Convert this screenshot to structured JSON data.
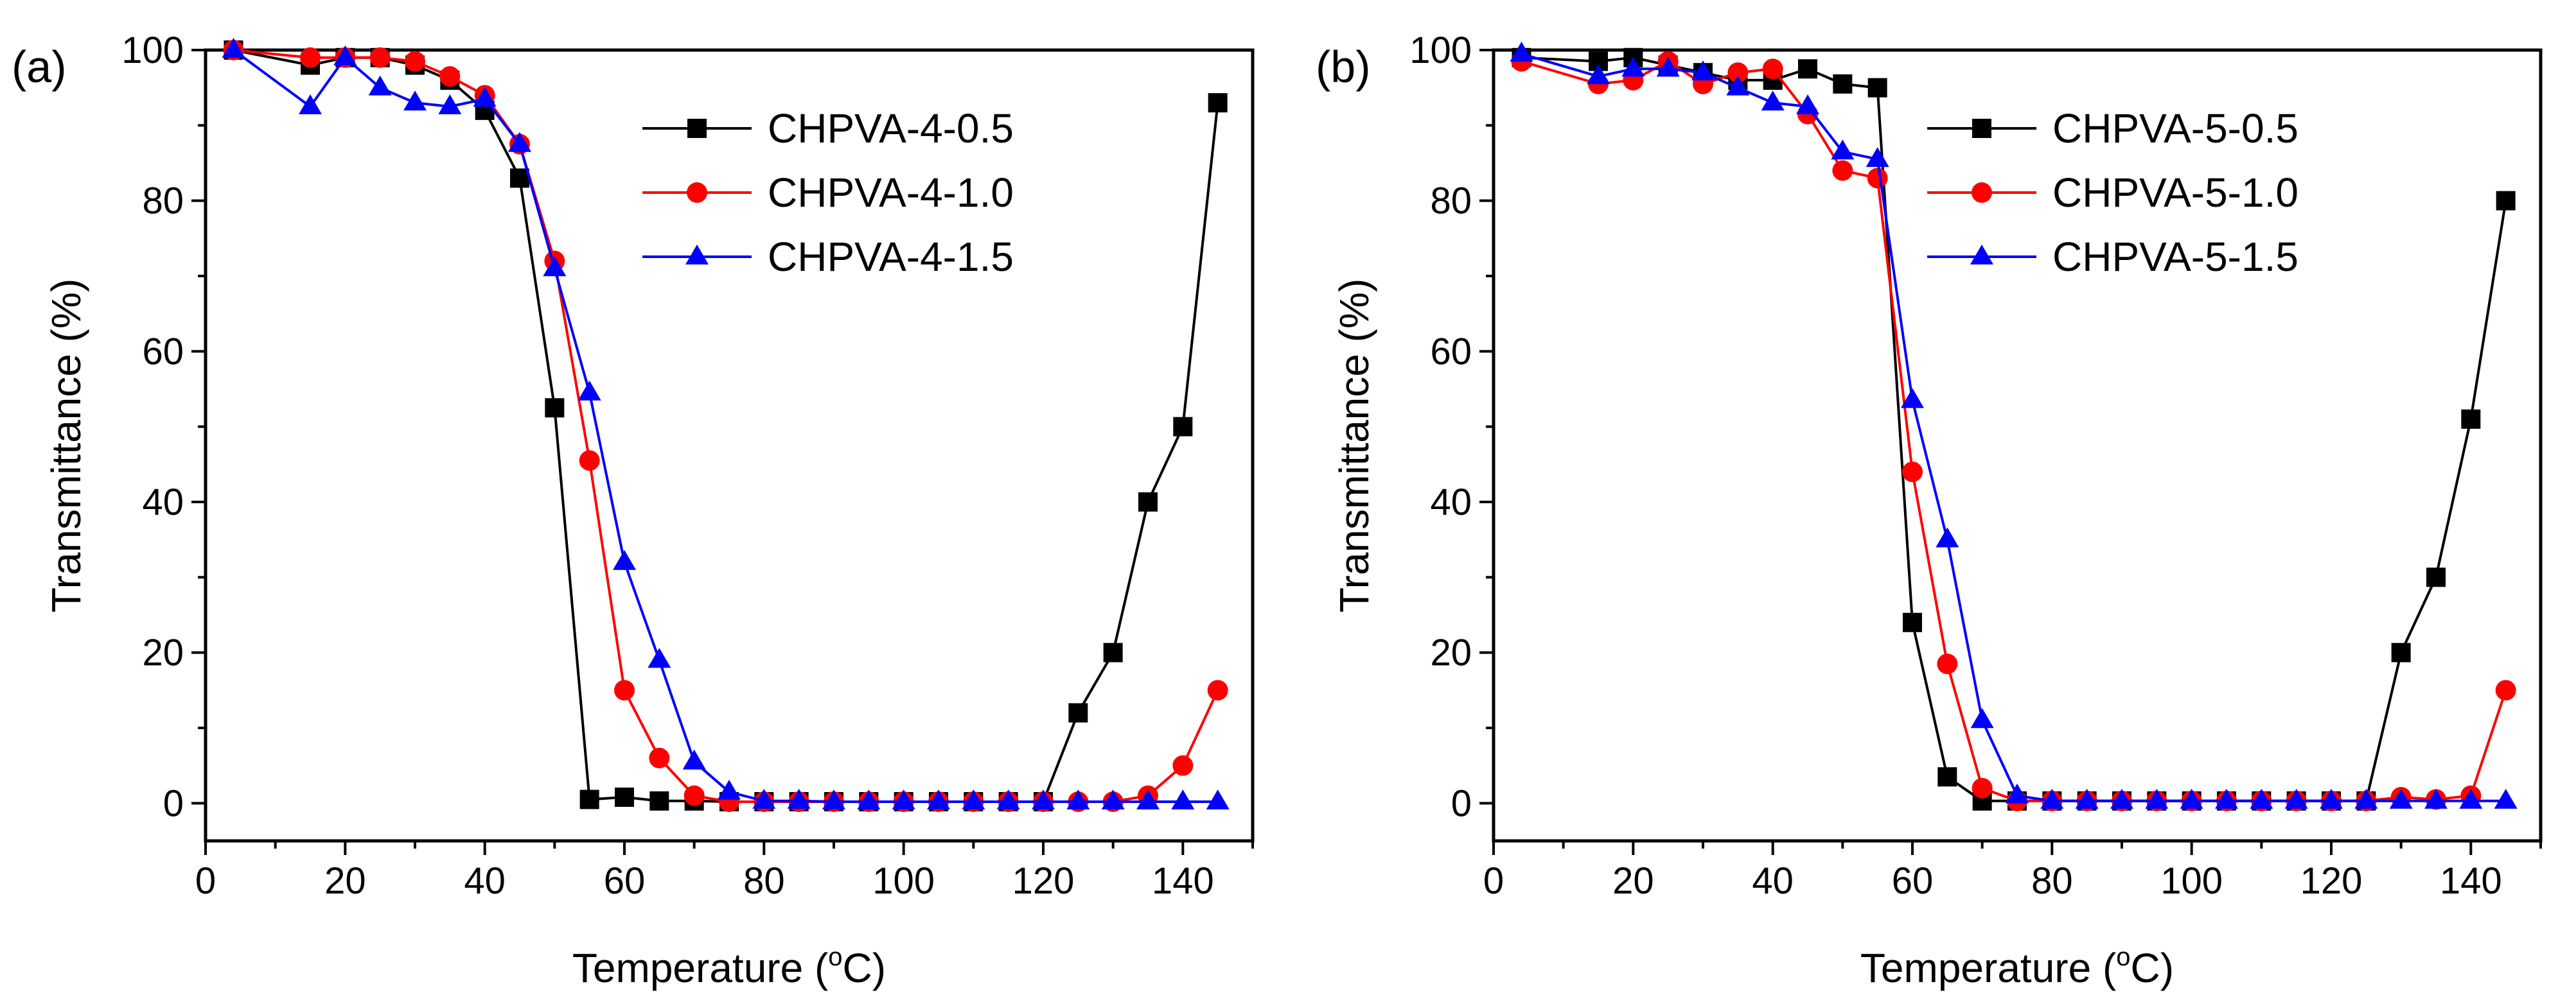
{
  "chart_data": [
    {
      "type": "line",
      "panel_label": "(a)",
      "xlabel": "Temperature (",
      "xlabel_sup": "o",
      "xlabel_end": "C)",
      "ylabel": "Transmittance (%)",
      "xlim": [
        0,
        150
      ],
      "ylim": [
        -5,
        100
      ],
      "xticks": [
        0,
        20,
        40,
        60,
        80,
        100,
        120,
        140
      ],
      "yticks": [
        0,
        20,
        40,
        60,
        80,
        100
      ],
      "grid": false,
      "legend_position": "top-right",
      "series": [
        {
          "name": "CHPVA-4-0.5",
          "color": "#000000",
          "marker": "square",
          "x": [
            4,
            15,
            20,
            25,
            30,
            35,
            40,
            45,
            50,
            55,
            60,
            65,
            70,
            75,
            80,
            85,
            90,
            95,
            100,
            105,
            110,
            115,
            120,
            125,
            130,
            135,
            140,
            145
          ],
          "y": [
            100,
            98,
            99,
            99,
            98,
            96,
            92,
            83,
            52.5,
            0.5,
            0.8,
            0.3,
            0.3,
            0.2,
            0.2,
            0.2,
            0.2,
            0.2,
            0.2,
            0.2,
            0.2,
            0.2,
            0.2,
            12,
            20,
            40,
            50,
            93
          ]
        },
        {
          "name": "CHPVA-4-1.0",
          "color": "#ff0000",
          "marker": "circle",
          "x": [
            4,
            15,
            20,
            25,
            30,
            35,
            40,
            45,
            50,
            55,
            60,
            65,
            70,
            75,
            80,
            85,
            90,
            95,
            100,
            105,
            110,
            115,
            120,
            125,
            130,
            135,
            140,
            145
          ],
          "y": [
            100,
            99,
            99,
            99,
            98.5,
            96.5,
            94,
            87.5,
            72,
            45.5,
            15,
            6,
            1,
            0.2,
            0.2,
            0.2,
            0.2,
            0.2,
            0.2,
            0.2,
            0.2,
            0.2,
            0.2,
            0.2,
            0.2,
            1,
            5,
            15
          ]
        },
        {
          "name": "CHPVA-4-1.5",
          "color": "#0000ff",
          "marker": "triangle",
          "x": [
            4,
            15,
            20,
            25,
            30,
            35,
            40,
            45,
            50,
            55,
            60,
            65,
            70,
            75,
            80,
            85,
            90,
            95,
            100,
            105,
            110,
            115,
            120,
            125,
            130,
            135,
            140,
            145
          ],
          "y": [
            100,
            92.5,
            99,
            95,
            93,
            92.5,
            93.5,
            87.5,
            71,
            54.5,
            32,
            19,
            5.5,
            1.5,
            0.3,
            0.3,
            0.2,
            0.2,
            0.2,
            0.2,
            0.2,
            0.2,
            0.2,
            0.2,
            0.2,
            0.2,
            0.2,
            0.2
          ]
        }
      ]
    },
    {
      "type": "line",
      "panel_label": "(b)",
      "xlabel": "Temperature (",
      "xlabel_sup": "o",
      "xlabel_end": "C)",
      "ylabel": "Transmittance (%)",
      "xlim": [
        0,
        150
      ],
      "ylim": [
        -5,
        100
      ],
      "xticks": [
        0,
        20,
        40,
        60,
        80,
        100,
        120,
        140
      ],
      "yticks": [
        0,
        20,
        40,
        60,
        80,
        100
      ],
      "grid": false,
      "legend_position": "top-right",
      "series": [
        {
          "name": "CHPVA-5-0.5",
          "color": "#000000",
          "marker": "square",
          "x": [
            4,
            15,
            20,
            25,
            30,
            35,
            40,
            45,
            50,
            55,
            60,
            65,
            70,
            75,
            80,
            85,
            90,
            95,
            100,
            105,
            110,
            115,
            120,
            125,
            130,
            135,
            140,
            145
          ],
          "y": [
            99,
            98.5,
            99,
            98,
            97,
            96,
            96,
            97.5,
            95.5,
            95,
            24,
            3.5,
            0.3,
            0.3,
            0.3,
            0.3,
            0.3,
            0.3,
            0.3,
            0.3,
            0.3,
            0.3,
            0.3,
            0.3,
            20,
            30,
            51,
            80
          ]
        },
        {
          "name": "CHPVA-5-1.0",
          "color": "#ff0000",
          "marker": "circle",
          "x": [
            4,
            15,
            20,
            25,
            30,
            35,
            40,
            45,
            50,
            55,
            60,
            65,
            70,
            75,
            80,
            85,
            90,
            95,
            100,
            105,
            110,
            115,
            120,
            125,
            130,
            135,
            140,
            145
          ],
          "y": [
            98.5,
            95.5,
            96,
            98.5,
            95.5,
            97,
            97.5,
            91.5,
            84,
            83,
            44,
            18.5,
            2,
            0.3,
            0.3,
            0.3,
            0.3,
            0.3,
            0.3,
            0.3,
            0.3,
            0.3,
            0.3,
            0.3,
            0.8,
            0.5,
            1,
            15
          ]
        },
        {
          "name": "CHPVA-5-1.5",
          "color": "#0000ff",
          "marker": "triangle",
          "x": [
            4,
            15,
            20,
            25,
            30,
            35,
            40,
            45,
            50,
            55,
            60,
            65,
            70,
            75,
            80,
            85,
            90,
            95,
            100,
            105,
            110,
            115,
            120,
            125,
            130,
            135,
            140,
            145
          ],
          "y": [
            99.5,
            96.5,
            97.5,
            97.5,
            97,
            95,
            93,
            92.5,
            86.5,
            85.5,
            53.5,
            35,
            11,
            1,
            0.3,
            0.3,
            0.3,
            0.3,
            0.3,
            0.3,
            0.3,
            0.3,
            0.3,
            0.3,
            0.3,
            0.3,
            0.3,
            0.3
          ]
        }
      ]
    }
  ]
}
